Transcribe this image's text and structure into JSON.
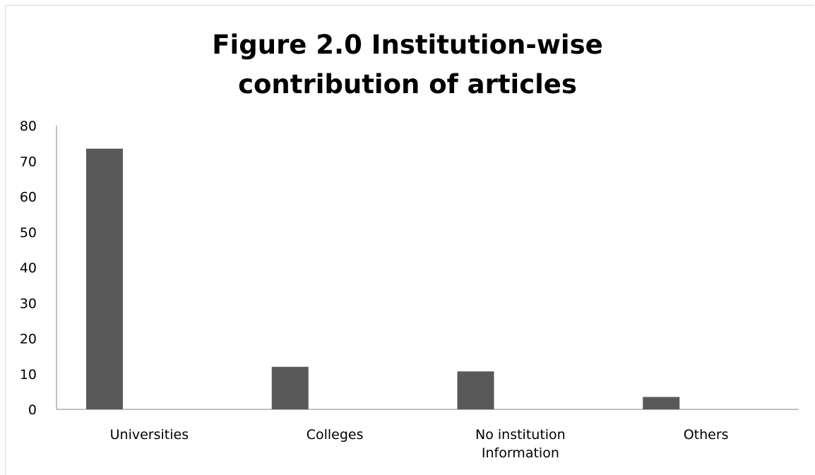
{
  "chart_data": {
    "type": "bar",
    "title": "Figure 2.0 Institution-wise contribution of articles",
    "categories": [
      "Universities",
      "Colleges",
      "No institution Information",
      "Others"
    ],
    "category_lines": [
      [
        "Universities"
      ],
      [
        "Colleges"
      ],
      [
        "No institution",
        "Information"
      ],
      [
        "Others"
      ]
    ],
    "values": [
      73.5,
      12,
      10.7,
      3.5
    ],
    "y_ticks": [
      "0",
      "10",
      "20",
      "30",
      "40",
      "50",
      "60",
      "70",
      "80"
    ],
    "ylim": [
      0,
      80
    ],
    "xlabel": "",
    "ylabel": "",
    "grid": false,
    "legend": "none",
    "bar_color": "#595959",
    "axis_color": "#868686"
  }
}
